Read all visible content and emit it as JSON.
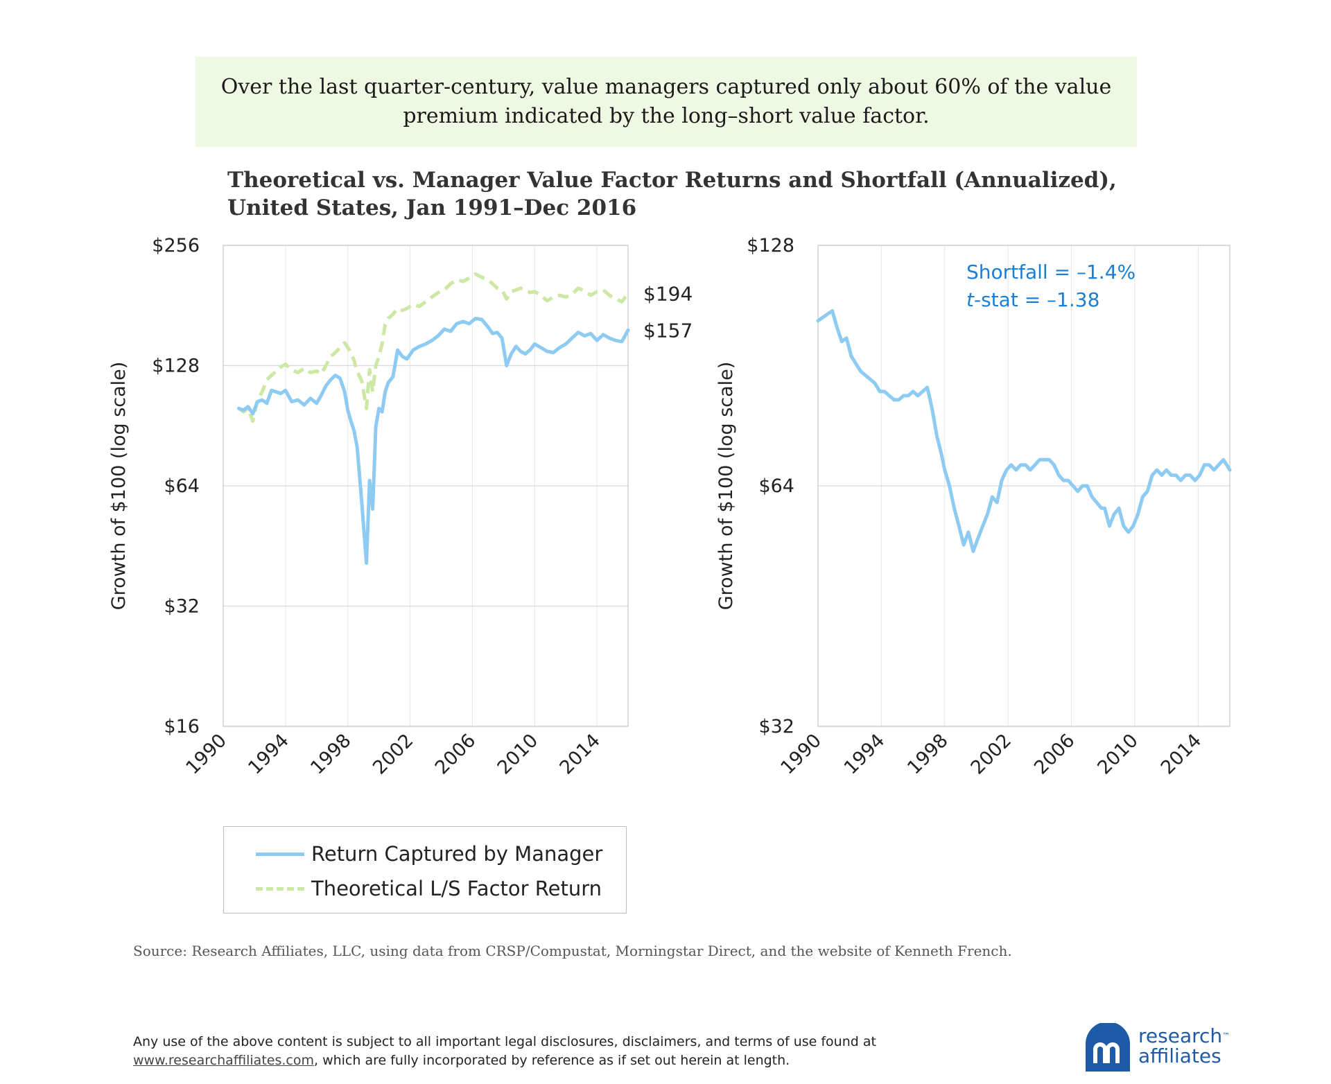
{
  "banner_text": "Over the last quarter-century, value managers captured only about 60% of the value premium indicated by the long–short value factor.",
  "title_line1": "Theoretical vs. Manager Value Factor Returns and Shortfall (Annualized),",
  "title_line2": "United States, Jan 1991–Dec 2016",
  "chart_data": [
    {
      "type": "line",
      "ylabel": "Growth of $100 (log scale)",
      "y_scale": "log2",
      "ylim": [
        16,
        256
      ],
      "y_ticks": [
        16,
        32,
        64,
        128,
        256
      ],
      "y_tick_labels": [
        "$16",
        "$32",
        "$64",
        "$128",
        "$256"
      ],
      "xlim": [
        1990,
        2016
      ],
      "x_ticks": [
        1990,
        1994,
        1998,
        2002,
        2006,
        2010,
        2014
      ],
      "x_tick_labels": [
        "1990",
        "1994",
        "1998",
        "2002",
        "2006",
        "2010",
        "2014"
      ],
      "grid": "horizontal and vertical",
      "legend_placement": "below",
      "series": [
        {
          "name": "Return Captured by Manager",
          "color": "#8dcbf3",
          "style": "solid",
          "end_label": "$157",
          "x": [
            1991.0,
            1991.3,
            1991.6,
            1991.9,
            1992.2,
            1992.5,
            1992.8,
            1993.1,
            1993.4,
            1993.7,
            1994.0,
            1994.4,
            1994.8,
            1995.2,
            1995.6,
            1996.0,
            1996.3,
            1996.6,
            1996.9,
            1997.2,
            1997.5,
            1997.8,
            1998.0,
            1998.2,
            1998.4,
            1998.6,
            1998.9,
            1999.2,
            1999.4,
            1999.6,
            1999.8,
            2000.0,
            2000.2,
            2000.4,
            2000.6,
            2000.9,
            2001.2,
            2001.5,
            2001.8,
            2002.2,
            2002.6,
            2003.0,
            2003.4,
            2003.8,
            2004.2,
            2004.6,
            2005.0,
            2005.4,
            2005.8,
            2006.2,
            2006.6,
            2007.0,
            2007.3,
            2007.6,
            2007.9,
            2008.2,
            2008.5,
            2008.8,
            2009.1,
            2009.4,
            2009.7,
            2010.0,
            2010.4,
            2010.8,
            2011.2,
            2011.6,
            2012.0,
            2012.4,
            2012.8,
            2013.2,
            2013.6,
            2014.0,
            2014.4,
            2014.8,
            2015.2,
            2015.6,
            2016.0
          ],
          "values": [
            100,
            99,
            101,
            97,
            104,
            105,
            103,
            111,
            110,
            109,
            111,
            104,
            105,
            102,
            106,
            103,
            108,
            114,
            118,
            121,
            119,
            110,
            99,
            93,
            88,
            80,
            58,
            41,
            66,
            56,
            90,
            100,
            98,
            110,
            116,
            120,
            140,
            135,
            133,
            140,
            143,
            145,
            148,
            152,
            158,
            156,
            163,
            165,
            163,
            168,
            167,
            160,
            154,
            155,
            150,
            128,
            137,
            143,
            139,
            137,
            140,
            145,
            142,
            139,
            138,
            142,
            145,
            150,
            155,
            152,
            154,
            148,
            153,
            150,
            148,
            147,
            157
          ]
        },
        {
          "name": "Theoretical L/S Factor Return",
          "color": "#cde7a4",
          "style": "dashed",
          "end_label": "$194",
          "x": [
            1991.0,
            1991.3,
            1991.6,
            1991.9,
            1992.2,
            1992.5,
            1992.8,
            1993.1,
            1993.4,
            1993.7,
            1994.0,
            1994.4,
            1994.8,
            1995.2,
            1995.6,
            1996.0,
            1996.3,
            1996.6,
            1996.9,
            1997.2,
            1997.5,
            1997.8,
            1998.0,
            1998.2,
            1998.4,
            1998.6,
            1998.9,
            1999.2,
            1999.4,
            1999.6,
            1999.8,
            2000.0,
            2000.2,
            2000.4,
            2000.6,
            2000.9,
            2001.2,
            2001.5,
            2001.8,
            2002.2,
            2002.6,
            2003.0,
            2003.4,
            2003.8,
            2004.2,
            2004.6,
            2005.0,
            2005.4,
            2005.8,
            2006.2,
            2006.6,
            2007.0,
            2007.3,
            2007.6,
            2007.9,
            2008.2,
            2008.5,
            2008.8,
            2009.1,
            2009.4,
            2009.7,
            2010.0,
            2010.4,
            2010.8,
            2011.2,
            2011.6,
            2012.0,
            2012.4,
            2012.8,
            2013.2,
            2013.6,
            2014.0,
            2014.4,
            2014.8,
            2015.2,
            2015.6,
            2016.0
          ],
          "values": [
            100,
            98,
            100,
            93,
            105,
            110,
            118,
            121,
            124,
            127,
            129,
            125,
            123,
            126,
            123,
            124,
            122,
            128,
            135,
            138,
            142,
            146,
            142,
            138,
            132,
            124,
            117,
            100,
            125,
            110,
            128,
            135,
            145,
            162,
            168,
            172,
            178,
            176,
            178,
            182,
            180,
            185,
            190,
            195,
            198,
            205,
            210,
            208,
            212,
            217,
            213,
            210,
            205,
            200,
            198,
            188,
            196,
            198,
            200,
            198,
            195,
            196,
            192,
            186,
            190,
            192,
            190,
            193,
            200,
            197,
            192,
            196,
            198,
            192,
            188,
            185,
            194
          ]
        }
      ]
    },
    {
      "type": "line",
      "ylabel": "Growth of $100 (log scale)",
      "y_scale": "log2",
      "ylim": [
        32,
        128
      ],
      "y_ticks": [
        32,
        64,
        128
      ],
      "y_tick_labels": [
        "$32",
        "$64",
        "$128"
      ],
      "xlim": [
        1990,
        2016
      ],
      "x_ticks": [
        1990,
        1994,
        1998,
        2002,
        2006,
        2010,
        2014
      ],
      "x_tick_labels": [
        "1990",
        "1994",
        "1998",
        "2002",
        "2006",
        "2010",
        "2014"
      ],
      "grid": "horizontal and vertical",
      "annotation_line1": "Shortfall = –1.4%",
      "annotation_line2_italic": "t",
      "annotation_line2_rest": "-stat = –1.38",
      "series": [
        {
          "color": "#8dcbf3",
          "style": "solid",
          "x": [
            1990.0,
            1990.3,
            1990.6,
            1990.9,
            1991.2,
            1991.5,
            1991.8,
            1992.1,
            1992.4,
            1992.7,
            1993.0,
            1993.3,
            1993.6,
            1993.9,
            1994.2,
            1994.5,
            1994.8,
            1995.1,
            1995.4,
            1995.7,
            1996.0,
            1996.3,
            1996.6,
            1996.9,
            1997.2,
            1997.5,
            1997.8,
            1998.0,
            1998.3,
            1998.6,
            1998.9,
            1999.2,
            1999.5,
            1999.8,
            2000.1,
            2000.4,
            2000.7,
            2001.0,
            2001.3,
            2001.6,
            2001.9,
            2002.2,
            2002.5,
            2002.8,
            2003.1,
            2003.4,
            2003.7,
            2004.0,
            2004.3,
            2004.6,
            2004.9,
            2005.2,
            2005.5,
            2005.8,
            2006.1,
            2006.4,
            2006.7,
            2007.0,
            2007.3,
            2007.6,
            2007.9,
            2008.1,
            2008.4,
            2008.7,
            2009.0,
            2009.3,
            2009.6,
            2009.9,
            2010.2,
            2010.5,
            2010.8,
            2011.1,
            2011.4,
            2011.7,
            2012.0,
            2012.3,
            2012.6,
            2012.9,
            2013.2,
            2013.5,
            2013.8,
            2014.1,
            2014.4,
            2014.7,
            2015.0,
            2015.3,
            2015.6,
            2016.0
          ],
          "values": [
            103,
            104,
            105,
            106,
            101,
            97,
            98,
            93,
            91,
            89,
            88,
            87,
            86,
            84,
            84,
            83,
            82,
            82,
            83,
            83,
            84,
            83,
            84,
            85,
            80,
            74,
            70,
            67,
            64,
            60,
            57,
            54,
            56,
            53,
            55,
            57,
            59,
            62,
            61,
            65,
            67,
            68,
            67,
            68,
            68,
            67,
            68,
            69,
            69,
            69,
            68,
            66,
            65,
            65,
            64,
            63,
            64,
            64,
            62,
            61,
            60,
            60,
            57,
            59,
            60,
            57,
            56,
            57,
            59,
            62,
            63,
            66,
            67,
            66,
            67,
            66,
            66,
            65,
            66,
            66,
            65,
            66,
            68,
            68,
            67,
            68,
            69,
            67
          ]
        }
      ]
    }
  ],
  "legend": {
    "item1": "Return Captured by Manager",
    "item2": "Theoretical L/S Factor Return"
  },
  "source": "Source: Research Affiliates, LLC, using data from CRSP/Compustat, Morningstar Direct, and the website of Kenneth French.",
  "disclaimer_line1": "Any use of the above content is subject to all important legal disclosures, disclaimers, and terms of use found at",
  "disclaimer_link": "www.researchaffiliates.com",
  "disclaimer_line2_rest": ", which are fully incorporated by reference as if set out herein at length.",
  "logo": {
    "line1": "research",
    "tm": "™",
    "line2": "affiliates",
    "color": "#1f5aa6"
  }
}
